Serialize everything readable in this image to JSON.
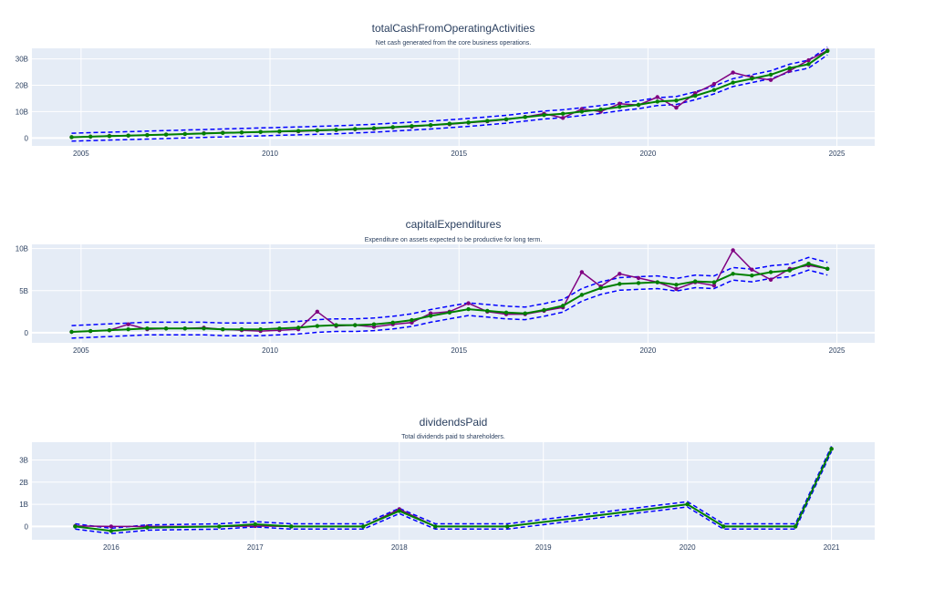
{
  "colors": {
    "plot_bg": "#E5ECF6",
    "grid": "#ffffff",
    "actual": "#800080",
    "smooth": "#008000",
    "band": "#0000ff",
    "text": "#2a3f5f"
  },
  "chart_data": [
    {
      "type": "line",
      "title": "totalCashFromOperatingActivities",
      "subtitle": "Net cash generated from the core business operations.",
      "xlim": [
        2003.7,
        2026.0
      ],
      "ylim": [
        -3,
        34
      ],
      "x_ticks": [
        2005,
        2010,
        2015,
        2020,
        2025
      ],
      "y_ticks": [
        0,
        10,
        20,
        30
      ],
      "y_tick_labels": [
        "0",
        "10B",
        "20B",
        "30B"
      ],
      "band_offset": 1.5,
      "grid": true,
      "series": [
        {
          "role": "actual",
          "x": [
            2004.75,
            2005.25,
            2005.75,
            2006.25,
            2006.75,
            2007.25,
            2007.75,
            2008.25,
            2008.75,
            2009.25,
            2009.75,
            2010.25,
            2010.75,
            2011.25,
            2011.75,
            2012.25,
            2012.75,
            2013.25,
            2013.75,
            2014.25,
            2014.75,
            2015.25,
            2015.75,
            2016.25,
            2016.75,
            2017.25,
            2017.75,
            2018.25,
            2018.75,
            2019.25,
            2019.75,
            2020.25,
            2020.75,
            2021.25,
            2021.75,
            2022.25,
            2022.75,
            2023.25,
            2023.75,
            2024.25,
            2024.75
          ],
          "y": [
            0.3,
            0.5,
            0.8,
            0.9,
            1.1,
            1.3,
            1.5,
            1.8,
            2.0,
            2.1,
            2.3,
            2.4,
            2.5,
            2.8,
            3.0,
            3.3,
            3.5,
            4.0,
            4.3,
            4.8,
            5.2,
            5.8,
            6.3,
            7.0,
            8.0,
            9.2,
            7.6,
            11.0,
            10.0,
            13.0,
            12.5,
            15.5,
            11.5,
            17.0,
            20.5,
            24.8,
            23.0,
            22.0,
            25.5,
            29.5,
            33.2
          ]
        },
        {
          "role": "smoothed",
          "x": [
            2004.75,
            2005.25,
            2005.75,
            2006.25,
            2006.75,
            2007.25,
            2007.75,
            2008.25,
            2008.75,
            2009.25,
            2009.75,
            2010.25,
            2010.75,
            2011.25,
            2011.75,
            2012.25,
            2012.75,
            2013.25,
            2013.75,
            2014.25,
            2014.75,
            2015.25,
            2015.75,
            2016.25,
            2016.75,
            2017.25,
            2017.75,
            2018.25,
            2018.75,
            2019.25,
            2019.75,
            2020.25,
            2020.75,
            2021.25,
            2021.75,
            2022.25,
            2022.75,
            2023.25,
            2023.75,
            2024.25,
            2024.75
          ],
          "y": [
            0.3,
            0.5,
            0.7,
            0.9,
            1.1,
            1.3,
            1.5,
            1.7,
            1.9,
            2.1,
            2.3,
            2.5,
            2.7,
            2.9,
            3.1,
            3.4,
            3.7,
            4.1,
            4.5,
            4.9,
            5.4,
            5.9,
            6.5,
            7.1,
            7.9,
            8.7,
            9.2,
            10.0,
            10.8,
            11.8,
            12.6,
            13.8,
            14.2,
            16.0,
            18.2,
            21.0,
            22.5,
            24.0,
            26.5,
            28.0,
            33.0
          ]
        }
      ]
    },
    {
      "type": "line",
      "title": "capitalExpenditures",
      "subtitle": "Expenditure on assets expected to be productive for long term.",
      "xlim": [
        2003.7,
        2026.0
      ],
      "ylim": [
        -1.2,
        10.5
      ],
      "x_ticks": [
        2005,
        2010,
        2015,
        2020,
        2025
      ],
      "y_ticks": [
        0,
        5,
        10
      ],
      "y_tick_labels": [
        "0",
        "5B",
        "10B"
      ],
      "band_offset": 0.75,
      "grid": true,
      "series": [
        {
          "role": "actual",
          "x": [
            2004.75,
            2005.25,
            2005.75,
            2006.25,
            2006.75,
            2007.25,
            2007.75,
            2008.25,
            2008.75,
            2009.25,
            2009.75,
            2010.25,
            2010.75,
            2011.25,
            2011.75,
            2012.25,
            2012.75,
            2013.25,
            2013.75,
            2014.25,
            2014.75,
            2015.25,
            2015.75,
            2016.25,
            2016.75,
            2017.25,
            2017.75,
            2018.25,
            2018.75,
            2019.25,
            2019.75,
            2020.25,
            2020.75,
            2021.25,
            2021.75,
            2022.25,
            2022.75,
            2023.25,
            2023.75,
            2024.25,
            2024.75
          ],
          "y": [
            0.1,
            0.2,
            0.3,
            1.0,
            0.4,
            0.5,
            0.5,
            0.6,
            0.4,
            0.3,
            0.2,
            0.3,
            0.4,
            2.5,
            0.8,
            0.9,
            0.7,
            1.0,
            1.2,
            2.3,
            2.5,
            3.5,
            2.5,
            2.2,
            2.2,
            2.6,
            3.0,
            7.2,
            5.5,
            7.0,
            6.5,
            6.0,
            5.2,
            6.0,
            5.6,
            9.8,
            7.5,
            6.3,
            7.6,
            8.0,
            7.6
          ]
        },
        {
          "role": "smoothed",
          "x": [
            2004.75,
            2005.25,
            2005.75,
            2006.25,
            2006.75,
            2007.25,
            2007.75,
            2008.25,
            2008.75,
            2009.25,
            2009.75,
            2010.25,
            2010.75,
            2011.25,
            2011.75,
            2012.25,
            2012.75,
            2013.25,
            2013.75,
            2014.25,
            2014.75,
            2015.25,
            2015.75,
            2016.25,
            2016.75,
            2017.25,
            2017.75,
            2018.25,
            2018.75,
            2019.25,
            2019.75,
            2020.25,
            2020.75,
            2021.25,
            2021.75,
            2022.25,
            2022.75,
            2023.25,
            2023.75,
            2024.25,
            2024.75
          ],
          "y": [
            0.1,
            0.2,
            0.3,
            0.4,
            0.5,
            0.5,
            0.5,
            0.5,
            0.4,
            0.4,
            0.4,
            0.5,
            0.6,
            0.8,
            0.9,
            0.9,
            1.0,
            1.2,
            1.5,
            2.0,
            2.4,
            2.8,
            2.6,
            2.4,
            2.3,
            2.7,
            3.2,
            4.5,
            5.3,
            5.8,
            5.9,
            6.0,
            5.7,
            6.1,
            6.0,
            7.0,
            6.8,
            7.2,
            7.4,
            8.2,
            7.6
          ]
        }
      ]
    },
    {
      "type": "line",
      "title": "dividendsPaid",
      "subtitle": "Total dividends paid to shareholders.",
      "xlim": [
        2015.45,
        2021.3
      ],
      "ylim": [
        -0.6,
        3.8
      ],
      "x_ticks": [
        2016,
        2017,
        2018,
        2019,
        2020,
        2021
      ],
      "y_ticks": [
        0,
        1,
        2,
        3
      ],
      "y_tick_labels": [
        "0",
        "1B",
        "2B",
        "3B"
      ],
      "band_offset": 0.12,
      "grid": true,
      "series": [
        {
          "role": "actual",
          "x": [
            2015.75,
            2016.0,
            2016.25,
            2016.75,
            2017.0,
            2017.25,
            2017.75,
            2018.0,
            2018.25,
            2018.75,
            2020.0,
            2020.25,
            2020.75,
            2021.0
          ],
          "y": [
            0.02,
            0.0,
            0.0,
            0.0,
            0.02,
            0.0,
            0.0,
            0.78,
            0.0,
            0.0,
            1.0,
            0.0,
            0.0,
            3.5
          ]
        },
        {
          "role": "smoothed",
          "x": [
            2015.75,
            2016.0,
            2016.25,
            2016.75,
            2017.0,
            2017.25,
            2017.75,
            2018.0,
            2018.25,
            2018.75,
            2020.0,
            2020.25,
            2020.75,
            2021.0
          ],
          "y": [
            0.0,
            -0.2,
            -0.05,
            0.0,
            0.1,
            0.0,
            0.0,
            0.7,
            0.0,
            0.0,
            1.0,
            0.0,
            0.0,
            3.5
          ]
        }
      ]
    }
  ]
}
